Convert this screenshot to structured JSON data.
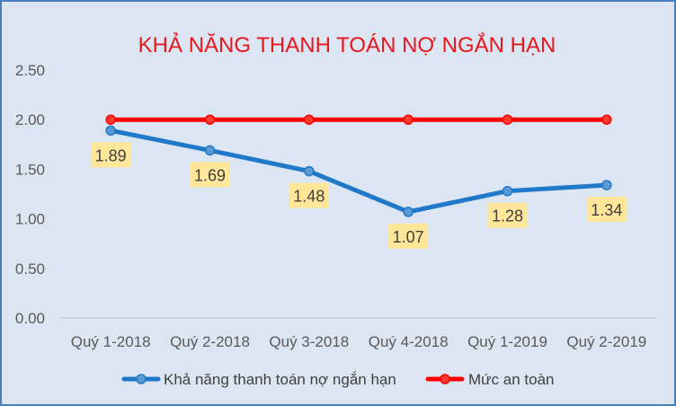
{
  "chart_data": {
    "type": "line",
    "title": "KHẢ NĂNG THANH TOÁN NỢ NGẮN HẠN",
    "categories": [
      "Quý 1-2018",
      "Quý 2-2018",
      "Quý 3-2018",
      "Quý 4-2018",
      "Quý 1-2019",
      "Quý 2-2019"
    ],
    "series": [
      {
        "name": "Khả năng thanh toán nợ ngắn hạn",
        "values": [
          1.89,
          1.69,
          1.48,
          1.07,
          1.28,
          1.34
        ],
        "labels": [
          "1.89",
          "1.69",
          "1.48",
          "1.07",
          "1.28",
          "1.34"
        ],
        "color": "#1f78c8",
        "marker_color": "#5b9bd5"
      },
      {
        "name": "Mức an toàn",
        "values": [
          2.0,
          2.0,
          2.0,
          2.0,
          2.0,
          2.0
        ],
        "color": "#ff0000",
        "marker_color": "#ff3b30"
      }
    ],
    "y_ticks": [
      "0.00",
      "0.50",
      "1.00",
      "1.50",
      "2.00",
      "2.50"
    ],
    "ylim": [
      0,
      2.5
    ],
    "grid": false,
    "legend_position": "bottom",
    "background_color": "#dce6f2",
    "border_color": "#4a7ebb",
    "title_color": "#e8161d",
    "data_label_background": "#ffe699"
  }
}
